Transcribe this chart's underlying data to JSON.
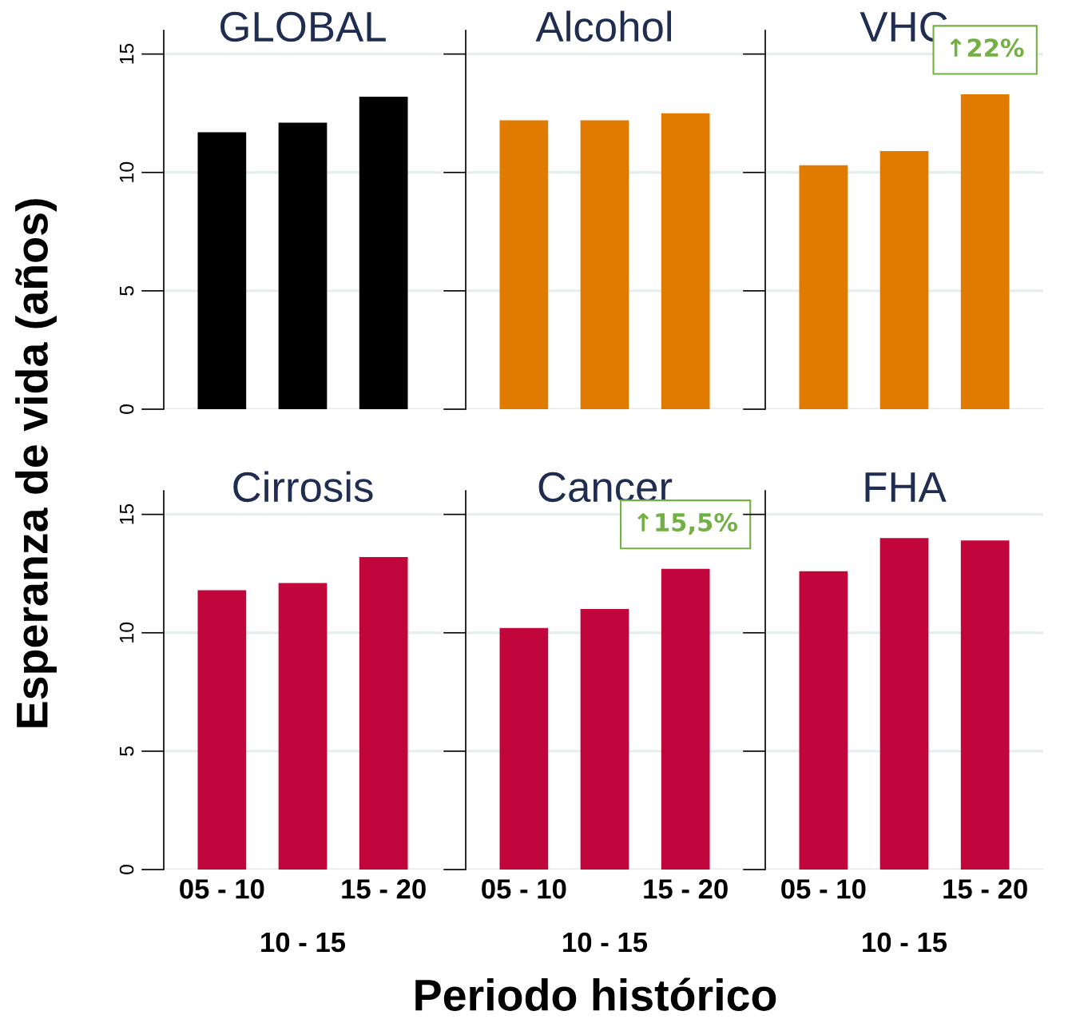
{
  "chart_data": [
    {
      "type": "bar",
      "title": "GLOBAL",
      "ylabel": "Esperanza de vida (años)",
      "categories": [
        "05 - 10",
        "10 - 15",
        "15 - 20"
      ],
      "values": [
        11.7,
        12.1,
        13.2
      ],
      "color": "#000000",
      "ylim": [
        0,
        16
      ],
      "yticks": [
        0,
        5,
        10,
        15
      ],
      "grid": "y",
      "tick_labels": "y"
    },
    {
      "type": "bar",
      "title": "Alcohol",
      "categories": [
        "05 - 10",
        "10 - 15",
        "15 - 20"
      ],
      "values": [
        12.2,
        12.2,
        12.5
      ],
      "color": "#e07b00",
      "ylim": [
        0,
        16
      ],
      "yticks": [
        {
          "value": 0,
          "label": null
        },
        {
          "value": 5,
          "label": null
        },
        {
          "value": 10,
          "label": null
        },
        {
          "value": 15,
          "label": null
        }
      ],
      "grid": "y",
      "tick_labels": false
    },
    {
      "type": "bar",
      "title": "VHC",
      "categories": [
        "05 - 10",
        "10 - 15",
        "15 - 20"
      ],
      "values": [
        10.3,
        10.9,
        13.3
      ],
      "color": "#e07b00",
      "ylim": [
        0,
        16
      ],
      "yticks": [
        {
          "value": 0,
          "label": null
        },
        {
          "value": 5,
          "label": null
        },
        {
          "value": 10,
          "label": null
        },
        {
          "value": 15,
          "label": null
        }
      ],
      "grid": "y",
      "tick_labels": false,
      "annotations": [
        {
          "text": "↑22%",
          "x": "15 - 20",
          "y": 13.3
        }
      ]
    },
    {
      "type": "bar",
      "title": "Cirrosis",
      "categories": [
        "05 - 10",
        "10 - 15",
        "15 - 20"
      ],
      "values": [
        11.8,
        12.1,
        13.2
      ],
      "color": "#c0063a",
      "ylim": [
        0,
        16
      ],
      "yticks": [
        0,
        5,
        10,
        15
      ],
      "grid": "y"
    },
    {
      "type": "bar",
      "title": "Cancer",
      "xlabel": "Periodo histórico",
      "categories": [
        "05 - 10",
        "10 - 15",
        "15 - 20"
      ],
      "values": [
        10.2,
        11.0,
        12.7
      ],
      "color": "#c0063a",
      "ylim": [
        0,
        16
      ],
      "yticks": [
        {
          "value": 0,
          "label": null
        },
        {
          "value": 5,
          "label": null
        },
        {
          "value": 10,
          "label": null
        },
        {
          "value": 15,
          "label": null
        }
      ],
      "grid": "y",
      "tick_labels": "x",
      "annotations": [
        {
          "text": "↑15,5%",
          "x": "15 - 20",
          "y": 12.7
        }
      ]
    },
    {
      "type": "bar",
      "title": "FHA",
      "categories": [
        "05 - 10",
        "10 - 15",
        "15 - 20"
      ],
      "values": [
        12.6,
        14.0,
        13.9
      ],
      "color": "#c0063a",
      "ylim": [
        0,
        16
      ],
      "yticks": [
        {
          "value": 0,
          "label": null
        },
        {
          "value": 5,
          "label": null
        },
        {
          "value": 10,
          "label": null
        },
        {
          "value": 15,
          "label": null
        }
      ],
      "grid": "y",
      "tick_labels": "x"
    }
  ]
}
